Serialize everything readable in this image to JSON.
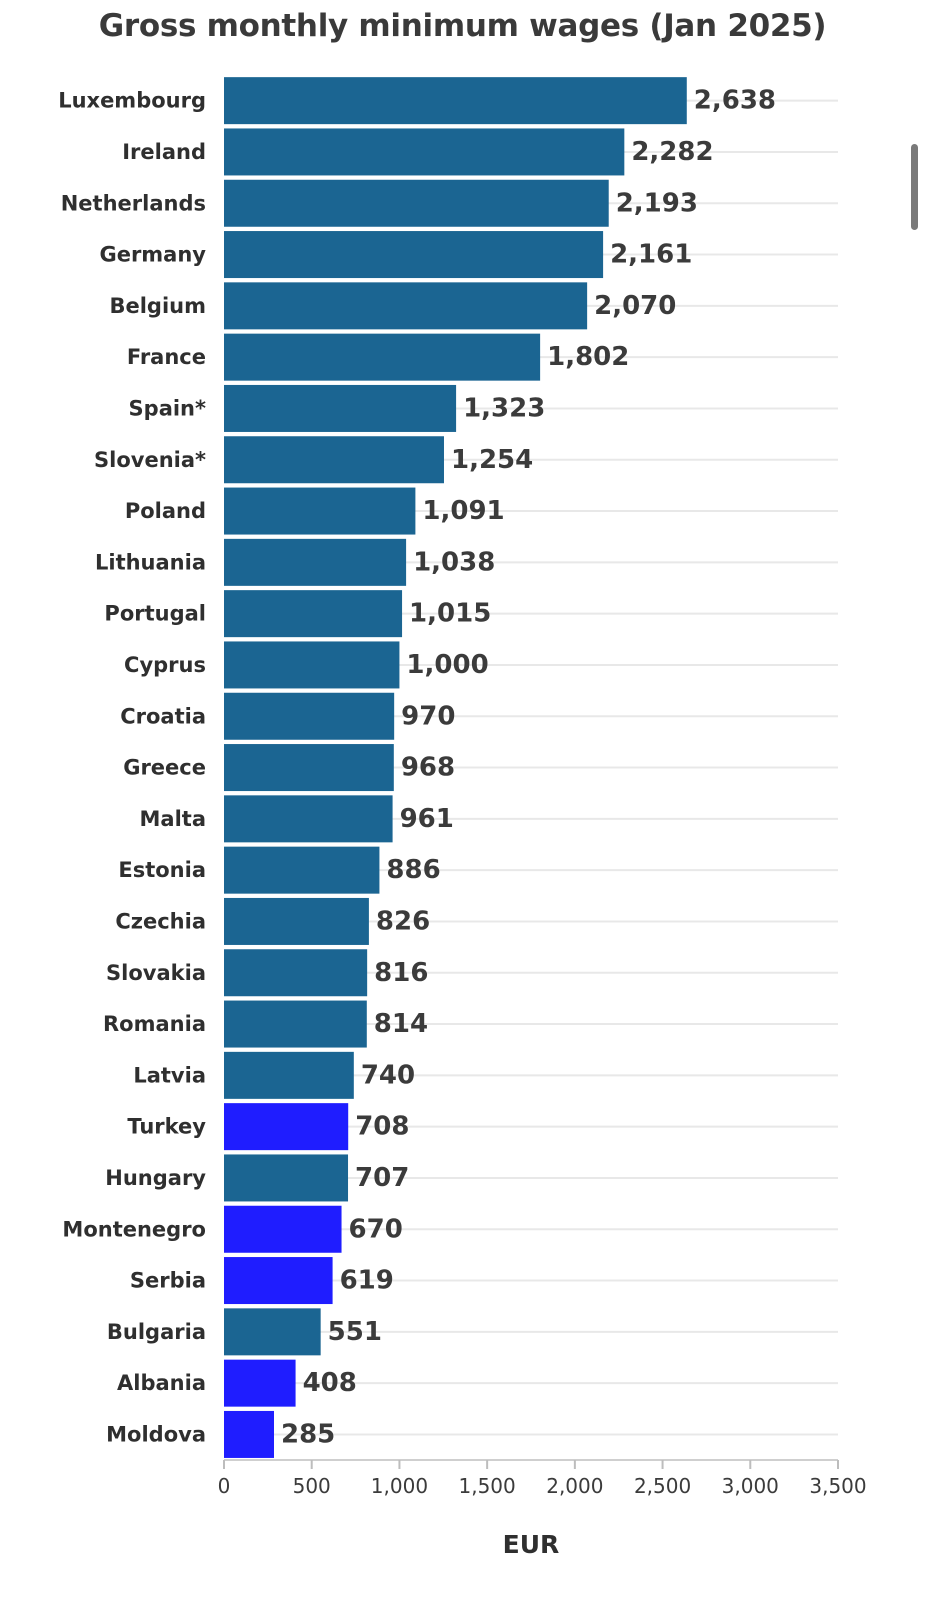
{
  "chart_data": {
    "type": "bar",
    "orientation": "horizontal",
    "title": "Gross monthly minimum wages (Jan 2025)",
    "xlabel": "EUR",
    "ylabel": "",
    "xlim": [
      0,
      3500
    ],
    "x_ticks": [
      0,
      500,
      1000,
      1500,
      2000,
      2500,
      3000,
      3500
    ],
    "x_tick_labels": [
      "0",
      "500",
      "1,000",
      "1,500",
      "2,000",
      "2,500",
      "3,000",
      "3,500"
    ],
    "grid": true,
    "legend": "none",
    "colors": {
      "default_bar": "#1b6592",
      "highlight_bar": "#1f1dff",
      "grid": "#e8e8e8"
    },
    "categories": [
      "Luxembourg",
      "Ireland",
      "Netherlands",
      "Germany",
      "Belgium",
      "France",
      "Spain*",
      "Slovenia*",
      "Poland",
      "Lithuania",
      "Portugal",
      "Cyprus",
      "Croatia",
      "Greece",
      "Malta",
      "Estonia",
      "Czechia",
      "Slovakia",
      "Romania",
      "Latvia",
      "Turkey",
      "Hungary",
      "Montenegro",
      "Serbia",
      "Bulgaria",
      "Albania",
      "Moldova"
    ],
    "values": [
      2638,
      2282,
      2193,
      2161,
      2070,
      1802,
      1323,
      1254,
      1091,
      1038,
      1015,
      1000,
      970,
      968,
      961,
      886,
      826,
      816,
      814,
      740,
      708,
      707,
      670,
      619,
      551,
      408,
      285
    ],
    "value_labels": [
      "2,638",
      "2,282",
      "2,193",
      "2,161",
      "2,070",
      "1,802",
      "1,323",
      "1,254",
      "1,091",
      "1,038",
      "1,015",
      "1,000",
      "970",
      "968",
      "961",
      "886",
      "826",
      "816",
      "814",
      "740",
      "708",
      "707",
      "670",
      "619",
      "551",
      "408",
      "285"
    ],
    "highlighted": [
      "Turkey",
      "Montenegro",
      "Serbia",
      "Albania",
      "Moldova"
    ]
  }
}
